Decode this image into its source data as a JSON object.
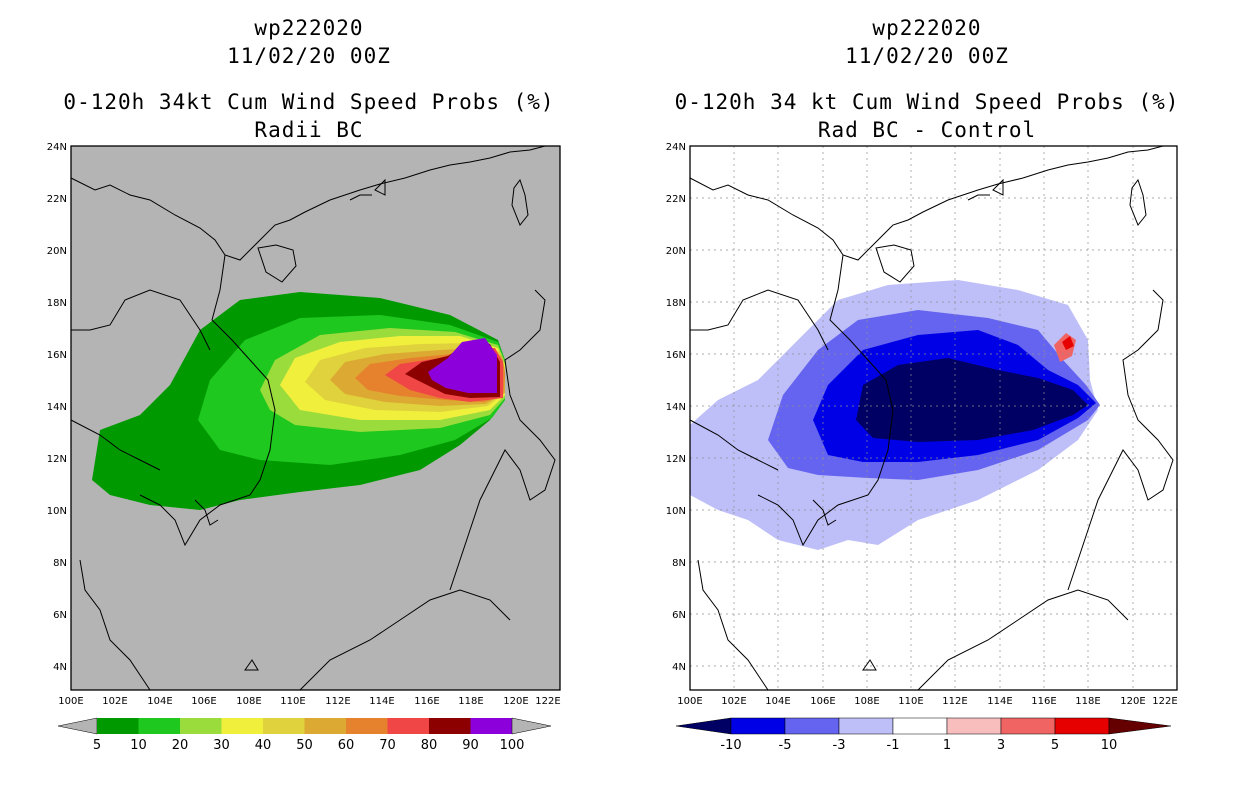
{
  "left": {
    "storm_id": "wp222020",
    "date": "11/02/20 00Z",
    "title": "0-120h 34kt Cum Wind Speed Probs (%)",
    "subtitle": "Radii BC",
    "colorbar": {
      "labels": [
        "5",
        "10",
        "20",
        "30",
        "40",
        "50",
        "60",
        "70",
        "80",
        "90",
        "100"
      ],
      "colors": [
        "#009a00",
        "#1ec81e",
        "#9adc3c",
        "#f0f03c",
        "#e0d23c",
        "#dcaa32",
        "#e6822e",
        "#f04646",
        "#8c0000",
        "#8c00dc"
      ]
    },
    "field": {
      "background": "#b4b4b4",
      "levels": [
        "10",
        "20",
        "30",
        "40",
        "50",
        "60",
        "70",
        "80",
        "90"
      ]
    }
  },
  "right": {
    "storm_id": "wp222020",
    "date": "11/02/20 00Z",
    "title": "0-120h 34 kt Cum Wind Speed Probs (%)",
    "subtitle": "Rad BC - Control",
    "colorbar": {
      "labels": [
        "-10",
        "-5",
        "-3",
        "-1",
        "1",
        "3",
        "5",
        "10"
      ],
      "colors": [
        "#000064",
        "#0000e6",
        "#6464f0",
        "#bebef8",
        "#ffffff",
        "#f8bebe",
        "#f06464",
        "#e60000",
        "#640000"
      ]
    }
  },
  "axes": {
    "lon_labels": [
      "100E",
      "102E",
      "104E",
      "106E",
      "108E",
      "110E",
      "112E",
      "114E",
      "116E",
      "118E",
      "120E",
      "122E"
    ],
    "lat_labels": [
      "24N",
      "22N",
      "20N",
      "18N",
      "16N",
      "14N",
      "12N",
      "10N",
      "8N",
      "6N",
      "4N"
    ]
  }
}
